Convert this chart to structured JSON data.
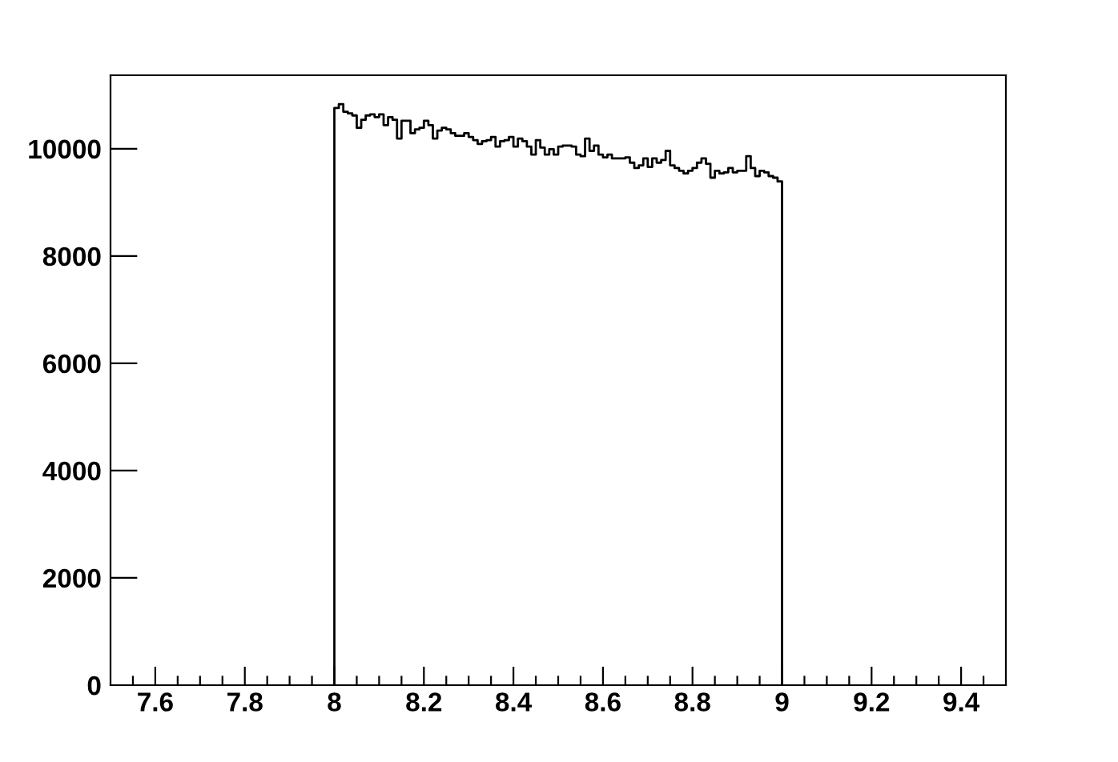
{
  "chart_data": {
    "type": "histogram",
    "bins": [
      8,
      8.01,
      8.02,
      8.03,
      8.04,
      8.05,
      8.06,
      8.07,
      8.08,
      8.09,
      8.1,
      8.11,
      8.12,
      8.13,
      8.14,
      8.15,
      8.16,
      8.17,
      8.18,
      8.19,
      8.2,
      8.21,
      8.22,
      8.23,
      8.24,
      8.25,
      8.26,
      8.27,
      8.28,
      8.29,
      8.3,
      8.31,
      8.32,
      8.33,
      8.34,
      8.35,
      8.36,
      8.37,
      8.38,
      8.39,
      8.4,
      8.41,
      8.42,
      8.43,
      8.44,
      8.45,
      8.46,
      8.47,
      8.48,
      8.49,
      8.5,
      8.51,
      8.52,
      8.53,
      8.54,
      8.55,
      8.56,
      8.57,
      8.58,
      8.59,
      8.6,
      8.61,
      8.62,
      8.63,
      8.64,
      8.65,
      8.66,
      8.67,
      8.68,
      8.69,
      8.7,
      8.71,
      8.72,
      8.73,
      8.74,
      8.75,
      8.76,
      8.77,
      8.78,
      8.79,
      8.8,
      8.81,
      8.82,
      8.83,
      8.84,
      8.85,
      8.86,
      8.87,
      8.88,
      8.89,
      8.9,
      8.91,
      8.92,
      8.93,
      8.94,
      8.95,
      8.96,
      8.97,
      8.98,
      8.99,
      9
    ],
    "values": [
      10760,
      10830,
      10690,
      10660,
      10620,
      10390,
      10540,
      10620,
      10640,
      10590,
      10640,
      10440,
      10590,
      10540,
      10190,
      10520,
      10520,
      10290,
      10360,
      10390,
      10520,
      10440,
      10190,
      10340,
      10390,
      10360,
      10290,
      10240,
      10240,
      10290,
      10220,
      10160,
      10090,
      10140,
      10160,
      10220,
      10040,
      10140,
      10160,
      10220,
      10040,
      10190,
      10140,
      10040,
      9890,
      10160,
      10020,
      9890,
      9990,
      9890,
      10040,
      10060,
      10060,
      10040,
      9890,
      9860,
      10190,
      9960,
      10060,
      9890,
      9840,
      9890,
      9820,
      9820,
      9820,
      9840,
      9740,
      9640,
      9690,
      9820,
      9660,
      9820,
      9740,
      9790,
      9960,
      9690,
      9640,
      9590,
      9540,
      9590,
      9640,
      9740,
      9820,
      9720,
      9460,
      9590,
      9540,
      9560,
      9640,
      9560,
      9590,
      9590,
      9860,
      9640,
      9490,
      9590,
      9560,
      9490,
      9460,
      9390
    ],
    "color": "#000000",
    "xlim": [
      7.5,
      9.5
    ],
    "ylim": [
      0,
      11370
    ],
    "xticks": [
      {
        "value": 7.55,
        "label": null
      },
      7.6,
      {
        "value": 7.65,
        "label": null
      },
      {
        "value": 7.7,
        "label": null
      },
      {
        "value": 7.75,
        "label": null
      },
      7.8,
      {
        "value": 7.85,
        "label": null
      },
      {
        "value": 7.9,
        "label": null
      },
      {
        "value": 7.95,
        "label": null
      },
      8,
      {
        "value": 8.05,
        "label": null
      },
      {
        "value": 8.1,
        "label": null
      },
      {
        "value": 8.15,
        "label": null
      },
      8.2,
      {
        "value": 8.25,
        "label": null
      },
      {
        "value": 8.3,
        "label": null
      },
      {
        "value": 8.35,
        "label": null
      },
      8.4,
      {
        "value": 8.45,
        "label": null
      },
      {
        "value": 8.5,
        "label": null
      },
      {
        "value": 8.55,
        "label": null
      },
      8.6,
      {
        "value": 8.65,
        "label": null
      },
      {
        "value": 8.7,
        "label": null
      },
      {
        "value": 8.75,
        "label": null
      },
      8.8,
      {
        "value": 8.85,
        "label": null
      },
      {
        "value": 8.9,
        "label": null
      },
      {
        "value": 8.95,
        "label": null
      },
      9,
      {
        "value": 9.05,
        "label": null
      },
      {
        "value": 9.1,
        "label": null
      },
      {
        "value": 9.15,
        "label": null
      },
      9.2,
      {
        "value": 9.25,
        "label": null
      },
      {
        "value": 9.3,
        "label": null
      },
      {
        "value": 9.35,
        "label": null
      },
      9.4,
      {
        "value": 9.45,
        "label": null
      }
    ],
    "yticks": [
      0,
      2000,
      4000,
      6000,
      8000,
      10000
    ]
  }
}
